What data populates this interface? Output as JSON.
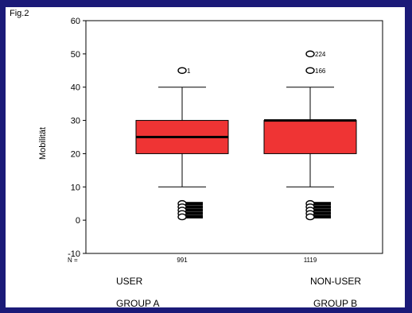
{
  "figure_label": "Fig.2",
  "colors": {
    "background": "#1b1a78",
    "panel": "#ffffff",
    "box_fill": "#ef3434",
    "line": "#000000"
  },
  "chart_data": {
    "type": "boxplot",
    "ylabel": "Mobilität",
    "ylim": [
      -10,
      60
    ],
    "yticks": [
      -10,
      0,
      10,
      20,
      30,
      40,
      50,
      60
    ],
    "n_prefix": "N =",
    "grid": false,
    "groups": [
      {
        "n": "991",
        "line1": "USER",
        "line2": "GROUP A",
        "whisker_low": 10,
        "q1": 20,
        "median": 25,
        "q3": 30,
        "whisker_high": 40,
        "outliers": [
          {
            "value": 45,
            "label": "1"
          },
          {
            "value": 5,
            "label": ""
          },
          {
            "value": 4,
            "label": ""
          },
          {
            "value": 3,
            "label": ""
          },
          {
            "value": 2,
            "label": ""
          },
          {
            "value": 1,
            "label": ""
          }
        ]
      },
      {
        "n": "1119",
        "line1": "NON-USER",
        "line2": "GROUP B",
        "whisker_low": 10,
        "q1": 20,
        "median": 30,
        "q3": 30,
        "whisker_high": 40,
        "outliers": [
          {
            "value": 50,
            "label": "224"
          },
          {
            "value": 45,
            "label": "166"
          },
          {
            "value": 5,
            "label": ""
          },
          {
            "value": 4,
            "label": ""
          },
          {
            "value": 3,
            "label": ""
          },
          {
            "value": 2,
            "label": ""
          },
          {
            "value": 1,
            "label": ""
          }
        ]
      }
    ]
  }
}
